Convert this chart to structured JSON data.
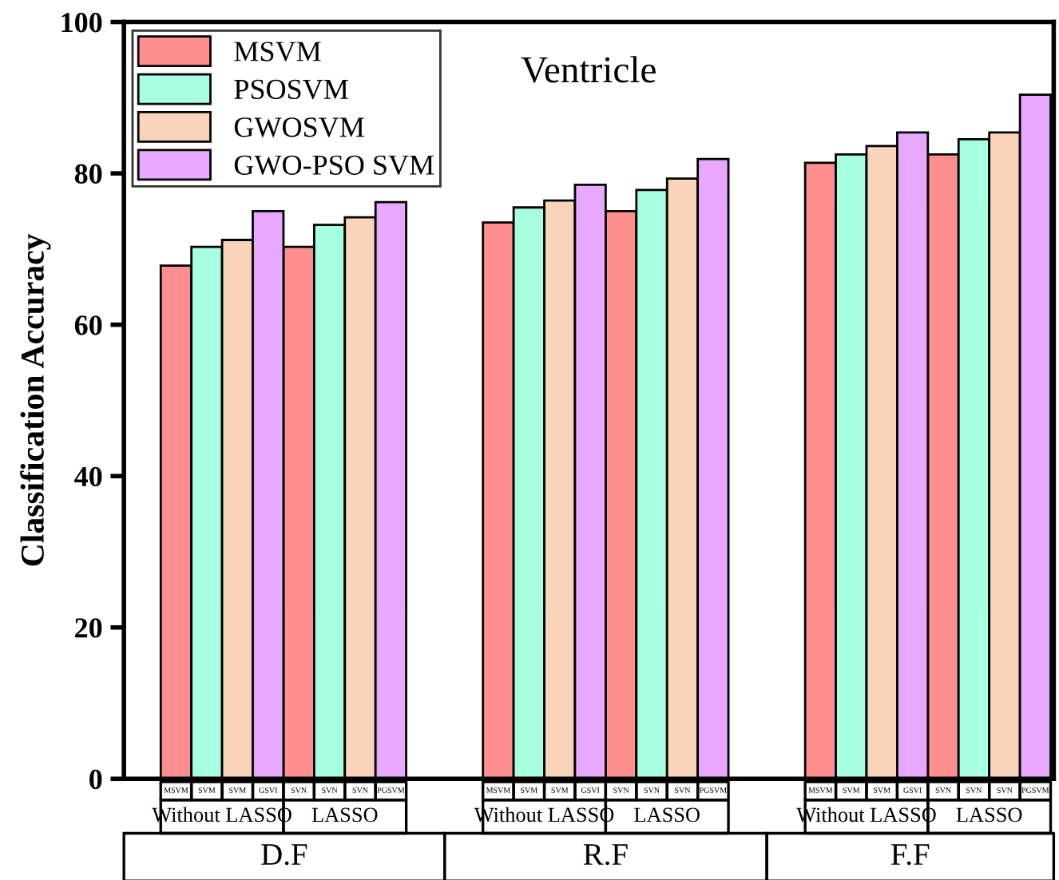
{
  "chart_data": {
    "type": "bar",
    "title": "Ventricle",
    "ylabel": "Classification Accuracy",
    "categories": [
      "Without LASSO",
      "LASSO",
      "Without LASSO",
      "LASSO",
      "Without LASSO",
      "LASSO"
    ],
    "series": [
      {
        "name": "MSVM",
        "color": "#ff8f8f",
        "values": [
          67.8,
          70.3,
          73.5,
          75.0,
          81.4,
          82.5
        ]
      },
      {
        "name": "PSOSVM",
        "color": "#a6ffdf",
        "values": [
          70.3,
          73.2,
          75.5,
          77.8,
          82.5,
          84.5
        ]
      },
      {
        "name": "GWOSVM",
        "color": "#fad4b8",
        "values": [
          71.2,
          74.2,
          76.4,
          79.3,
          83.6,
          85.4
        ]
      },
      {
        "name": "GWO-PSO SVM",
        "color": "#e8a8ff",
        "values": [
          75.0,
          76.2,
          78.5,
          81.9,
          85.4,
          90.4
        ]
      }
    ],
    "ylim": [
      0,
      100
    ],
    "yticks": [
      0,
      20,
      40,
      60,
      80,
      100
    ],
    "legend": "top left",
    "grid": false,
    "annotations": [
      "MSVM",
      "SVM",
      "SVM",
      "GSVI",
      "SVN",
      "SVN",
      "SVN",
      "PGSVM",
      "MSVM",
      "SVM",
      "SVM",
      "GSVI",
      "SVN",
      "SVN",
      "SVN",
      "PGSVM",
      "MSVM",
      "SVM",
      "SVM",
      "GSVI",
      "SVN",
      "SVN",
      "SVN",
      "PGSVM",
      "D.F",
      "R.F",
      "F.F"
    ]
  }
}
